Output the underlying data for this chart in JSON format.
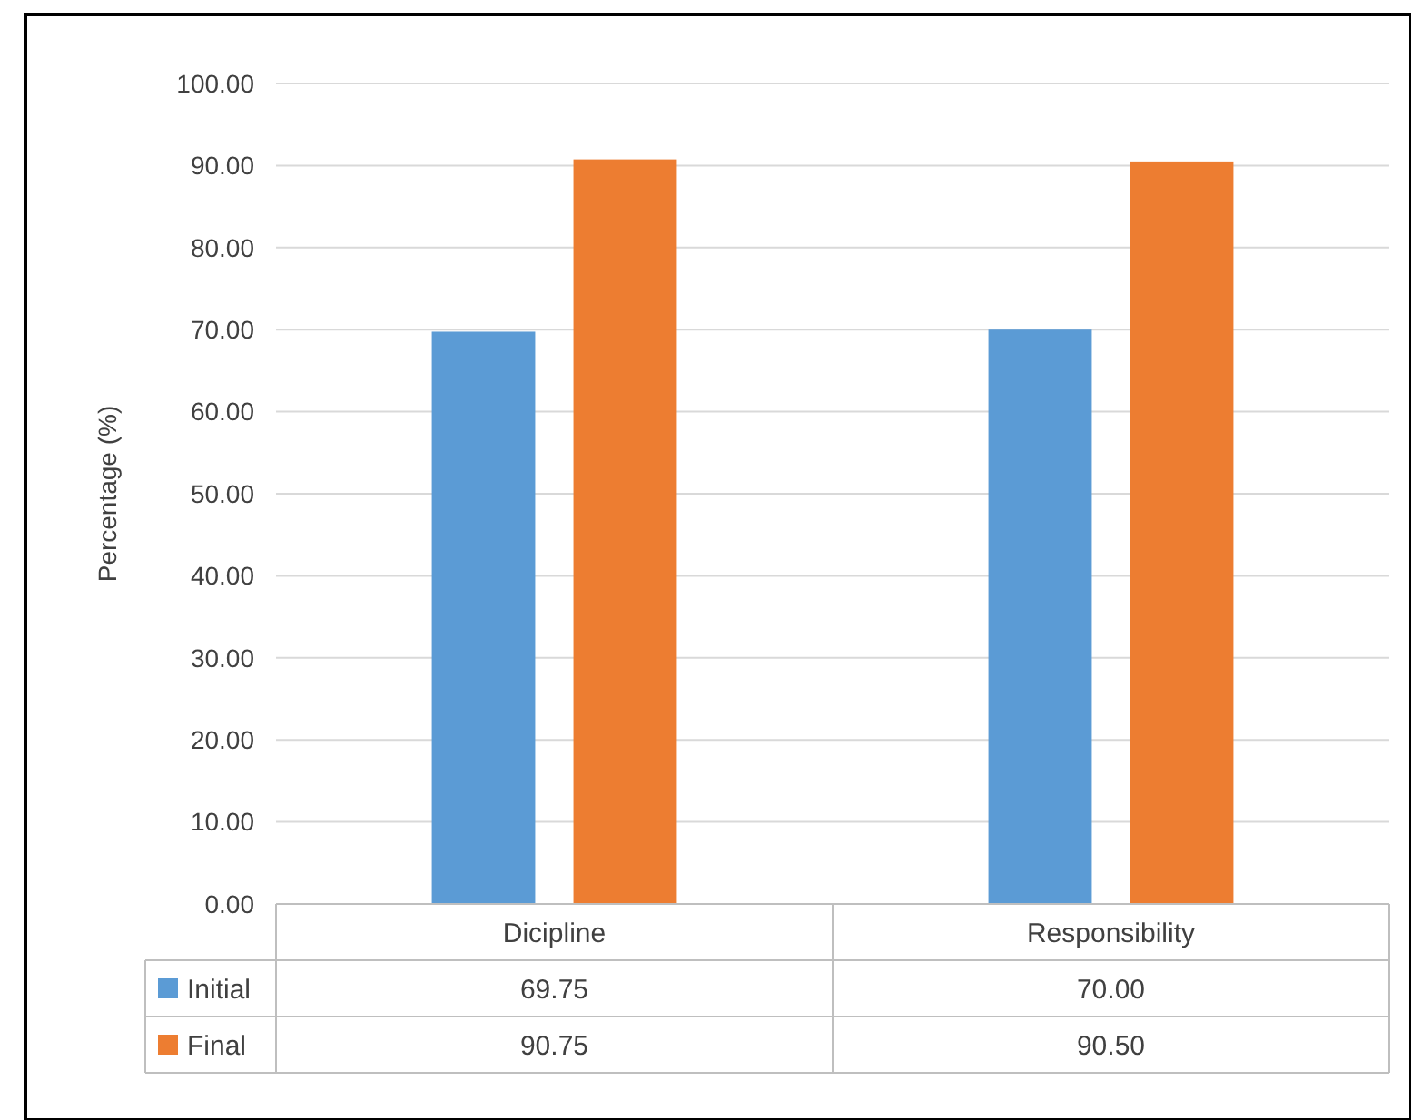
{
  "chart_data": {
    "type": "bar",
    "ylabel": "Percentage (%)",
    "categories": [
      "Dicipline",
      "Responsibility"
    ],
    "series": [
      {
        "name": "Initial",
        "color": "#5b9bd5",
        "values": [
          69.75,
          70.0
        ],
        "value_labels": [
          "69.75",
          "70.00"
        ]
      },
      {
        "name": "Final",
        "color": "#ed7d31",
        "values": [
          90.75,
          90.5
        ],
        "value_labels": [
          "90.75",
          "90.50"
        ]
      }
    ],
    "ylim": [
      0,
      100
    ],
    "yticks": [
      {
        "value": 0,
        "label": "0.00"
      },
      {
        "value": 10,
        "label": "10.00"
      },
      {
        "value": 20,
        "label": "20.00"
      },
      {
        "value": 30,
        "label": "30.00"
      },
      {
        "value": 40,
        "label": "40.00"
      },
      {
        "value": 50,
        "label": "50.00"
      },
      {
        "value": 60,
        "label": "60.00"
      },
      {
        "value": 70,
        "label": "70.00"
      },
      {
        "value": 80,
        "label": "80.00"
      },
      {
        "value": 90,
        "label": "90.00"
      },
      {
        "value": 100,
        "label": "100.00"
      }
    ],
    "grid": "y",
    "legend": "bottom"
  }
}
